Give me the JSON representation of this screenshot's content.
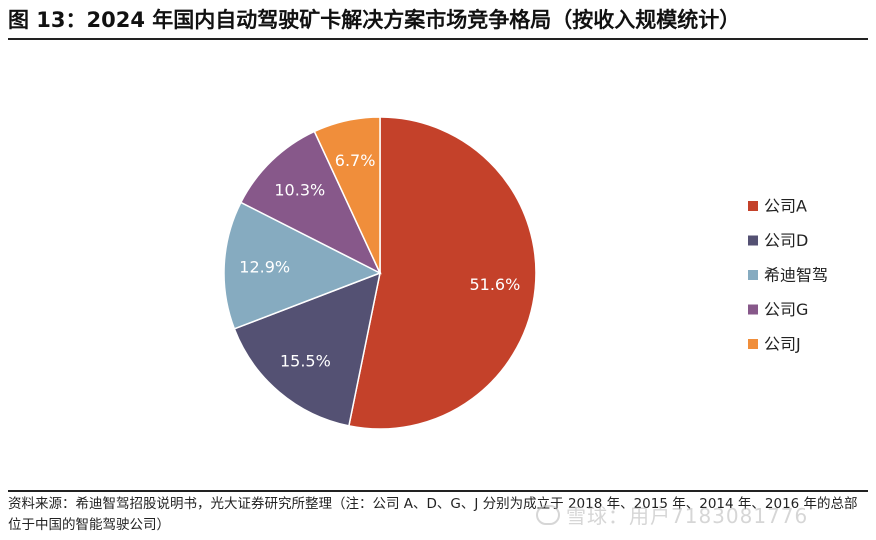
{
  "title": "图 13：2024 年国内自动驾驶矿卡解决方案市场竞争格局（按收入规模统计）",
  "source": "资料来源：希迪智驾招股说明书，光大证券研究所整理（注：公司 A、D、G、J 分别为成立于 2018 年、2015 年、2014 年、2016 年的总部位于中国的智能驾驶公司）",
  "watermark": "雪球：用户7183081776",
  "colors": {
    "公司A": "#C4412A",
    "公司D": "#545173",
    "希迪智驾": "#86ABC0",
    "公司G": "#87588A",
    "公司J": "#F08E3B"
  },
  "chart_data": {
    "type": "pie",
    "slices": [
      {
        "label": "公司A",
        "value": 51.6,
        "text": "51.6%"
      },
      {
        "label": "公司D",
        "value": 15.5,
        "text": "15.5%"
      },
      {
        "label": "希迪智驾",
        "value": 12.9,
        "text": "12.9%"
      },
      {
        "label": "公司G",
        "value": 10.3,
        "text": "10.3%"
      },
      {
        "label": "公司J",
        "value": 6.7,
        "text": "6.7%"
      }
    ],
    "start": "12 o'clock",
    "direction": "clockwise",
    "legend_position": "right"
  }
}
